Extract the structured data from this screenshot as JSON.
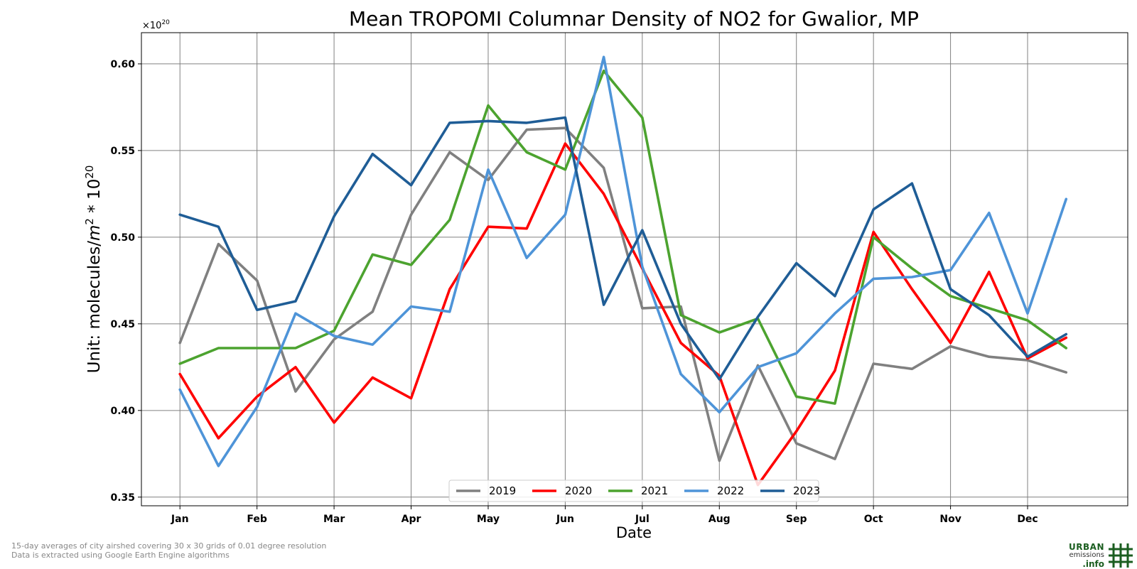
{
  "chart_data": {
    "type": "line",
    "title": "Mean TROPOMI Columnar Density of NO2 for Gwalior, MP",
    "xlabel": "Date",
    "ylabel_prefix": "Unit: molecules/",
    "ylabel_unit_base": "m",
    "ylabel_unit_exp": "2",
    "ylabel_mult": " * 10",
    "ylabel_mult_exp": "20",
    "offset_base": "×10",
    "offset_exp": "20",
    "ylim": [
      0.345,
      0.618
    ],
    "yticks": [
      0.35,
      0.4,
      0.45,
      0.5,
      0.55,
      0.6
    ],
    "ytick_labels": [
      "0.35",
      "0.40",
      "0.45",
      "0.50",
      "0.55",
      "0.60"
    ],
    "xlim": [
      -0.5,
      12.3
    ],
    "xticks": [
      0,
      1,
      2,
      3,
      4,
      5,
      6,
      7,
      8,
      9,
      10,
      11
    ],
    "xtick_labels": [
      "Jan",
      "Feb",
      "Mar",
      "Apr",
      "May",
      "Jun",
      "Jul",
      "Aug",
      "Sep",
      "Oct",
      "Nov",
      "Dec"
    ],
    "x": [
      0,
      0.5,
      1,
      1.5,
      2,
      2.5,
      3,
      3.5,
      4,
      4.5,
      5,
      5.5,
      6,
      6.5,
      7,
      7.5,
      8,
      8.5,
      9,
      9.5,
      10,
      10.5,
      11,
      11.5
    ],
    "grid": true,
    "legend_position": "bottom-center",
    "series": [
      {
        "name": "2019",
        "color": "#808080",
        "values": [
          0.439,
          0.496,
          0.475,
          0.411,
          0.441,
          0.457,
          0.513,
          0.549,
          0.533,
          0.562,
          0.563,
          0.54,
          0.459,
          0.46,
          0.371,
          0.426,
          0.381,
          0.372,
          0.427,
          0.424,
          0.437,
          0.431,
          0.429,
          0.422
        ]
      },
      {
        "name": "2020",
        "color": "#ff0000",
        "values": [
          0.421,
          0.384,
          0.408,
          0.425,
          0.393,
          0.419,
          0.407,
          0.47,
          0.506,
          0.505,
          0.554,
          0.525,
          0.482,
          0.439,
          0.42,
          0.357,
          0.388,
          0.423,
          0.503,
          0.47,
          0.439,
          0.48,
          0.43,
          0.442
        ]
      },
      {
        "name": "2021",
        "color": "#4ca32f",
        "values": [
          0.427,
          0.436,
          0.436,
          0.436,
          0.446,
          0.49,
          0.484,
          0.51,
          0.576,
          0.549,
          0.539,
          0.596,
          0.569,
          0.455,
          0.445,
          0.453,
          0.408,
          0.404,
          0.5,
          0.482,
          0.466,
          0.459,
          0.452,
          0.436
        ]
      },
      {
        "name": "2022",
        "color": "#4e94d8",
        "values": [
          0.412,
          0.368,
          0.402,
          0.456,
          0.443,
          0.438,
          0.46,
          0.457,
          0.539,
          0.488,
          0.513,
          0.604,
          0.483,
          0.421,
          0.399,
          0.425,
          0.433,
          0.456,
          0.476,
          0.477,
          0.481,
          0.514,
          0.456,
          0.522
        ]
      },
      {
        "name": "2023",
        "color": "#1f5d96",
        "values": [
          0.513,
          0.506,
          0.458,
          0.463,
          0.512,
          0.548,
          0.53,
          0.566,
          0.567,
          0.566,
          0.569,
          0.461,
          0.504,
          0.45,
          0.418,
          0.454,
          0.485,
          0.466,
          0.516,
          0.531,
          0.47,
          0.455,
          0.431,
          0.444
        ]
      }
    ]
  },
  "footnote": {
    "line1": "15-day averages of city airshed covering 30 x 30 grids of 0.01 degree resolution",
    "line2": "Data is extracted using Google Earth Engine algorithms"
  },
  "logo": {
    "line1": "URBAN",
    "line2": "emissions",
    "line3": ".info",
    "color": "#1b5e20"
  }
}
